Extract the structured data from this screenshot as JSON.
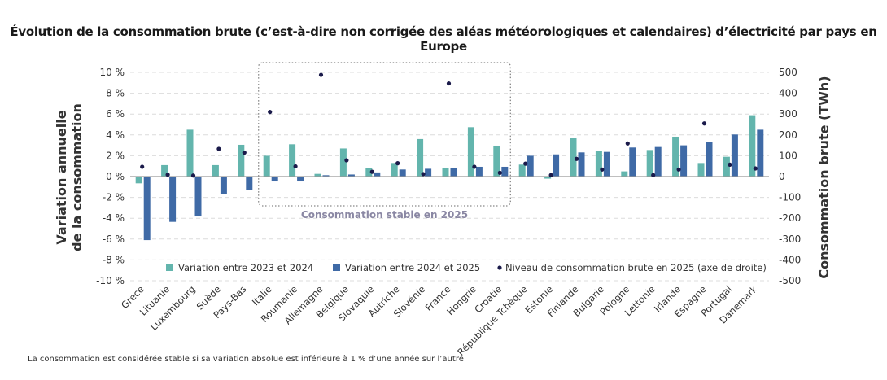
{
  "title": "Évolution de la consommation brute (c’est-à-dire non corrigée des aléas météorologiques et calendaires) d’électricité par pays en Europe",
  "footnote": "La consommation est considérée stable si sa variation absolue est inférieure à 1 % d’une année sur l’autre",
  "chart_data": {
    "type": "bar",
    "title": "Évolution de la consommation brute (c’est-à-dire non corrigée des aléas météorologiques et calendaires) d’électricité par pays en Europe",
    "ylabel_lines": [
      "Variation annuelle",
      "de la consommation"
    ],
    "y2label": "Consommation brute (TWh)",
    "ylim": [
      -10,
      10
    ],
    "y2lim": [
      -500,
      500
    ],
    "yticks": [
      "-10 %",
      "-8 %",
      "-6 %",
      "-4 %",
      "-2 %",
      "0 %",
      "2 %",
      "4 %",
      "6 %",
      "8 %",
      "10 %"
    ],
    "y2ticks": [
      "-500",
      "-400",
      "-300",
      "-200",
      "-100",
      "0",
      "100",
      "200",
      "300",
      "400",
      "500"
    ],
    "grid": true,
    "legend_position": "bottom",
    "annotation": "Consommation stable en 2025",
    "annotation_range": [
      "Italie",
      "Croatie"
    ],
    "categories": [
      "Grèce",
      "Lituanie",
      "Luxembourg",
      "Suède",
      "Pays-Bas",
      "Italie",
      "Roumanie",
      "Allemagne",
      "Belgique",
      "Slovaquie",
      "Autriche",
      "Slovénie",
      "France",
      "Hongrie",
      "Croatie",
      "République Tchèque",
      "Estonie",
      "Finlande",
      "Bulgarie",
      "Pologne",
      "Lettonie",
      "Irlande",
      "Espagne",
      "Portugal",
      "Danemark"
    ],
    "series": [
      {
        "name": "Variation entre 2023 et 2024",
        "type": "bar",
        "axis": "left",
        "color": "#63b5ad",
        "values": [
          -0.65,
          1.1,
          4.5,
          1.1,
          3.05,
          2.0,
          3.1,
          0.26,
          2.7,
          0.83,
          1.3,
          3.6,
          0.86,
          4.74,
          2.97,
          1.15,
          -0.2,
          3.67,
          2.45,
          0.5,
          2.55,
          3.83,
          1.3,
          1.9,
          5.89
        ]
      },
      {
        "name": "Variation entre 2024 et 2025",
        "type": "bar",
        "axis": "left",
        "color": "#3f6aa6",
        "values": [
          -6.1,
          -4.35,
          -3.83,
          -1.67,
          -1.25,
          -0.47,
          -0.47,
          0.13,
          0.2,
          0.4,
          0.68,
          0.75,
          0.86,
          0.94,
          0.94,
          2.0,
          2.13,
          2.32,
          2.37,
          2.79,
          2.84,
          3.0,
          3.33,
          4.04,
          4.5
        ]
      },
      {
        "name": "Niveau de consommation brute en 2025 (axe de droite)",
        "type": "scatter",
        "axis": "right",
        "color": "#1a1a4a",
        "values": [
          47,
          9,
          5,
          133,
          115,
          310,
          49,
          488,
          78,
          23,
          64,
          12,
          447,
          47,
          18,
          62,
          7,
          85,
          34,
          159,
          7,
          34,
          255,
          57,
          39
        ]
      }
    ]
  }
}
